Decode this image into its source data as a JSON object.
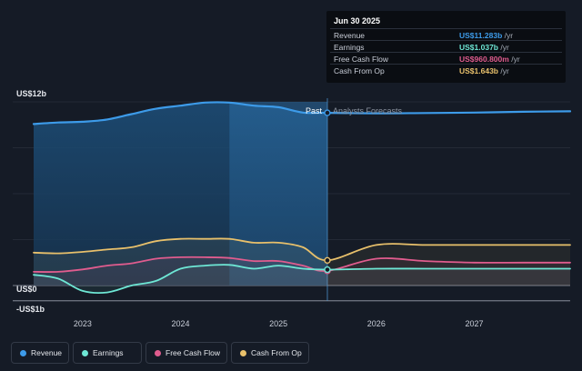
{
  "tooltip": {
    "date": "Jun 30 2025",
    "rows": [
      {
        "label": "Revenue",
        "value": "US$11.283b",
        "unit": "/yr",
        "color": "#3d9be9"
      },
      {
        "label": "Earnings",
        "value": "US$1.037b",
        "unit": "/yr",
        "color": "#6ee7d5"
      },
      {
        "label": "Free Cash Flow",
        "value": "US$960.800m",
        "unit": "/yr",
        "color": "#e05c8e"
      },
      {
        "label": "Cash From Op",
        "value": "US$1.643b",
        "unit": "/yr",
        "color": "#e8c06b"
      }
    ]
  },
  "legend": [
    {
      "label": "Revenue",
      "color": "#3d9be9"
    },
    {
      "label": "Earnings",
      "color": "#6ee7d5"
    },
    {
      "label": "Free Cash Flow",
      "color": "#e05c8e"
    },
    {
      "label": "Cash From Op",
      "color": "#e8c06b"
    }
  ],
  "chart_data": {
    "type": "line",
    "title": "",
    "xlabel": "",
    "ylabel": "",
    "x_range": [
      2022.45,
      2027.98
    ],
    "ylim": [
      -1,
      12
    ],
    "y_tick_labels": [
      {
        "value": 12,
        "label": "US$12b"
      },
      {
        "value": 0,
        "label": "US$0"
      },
      {
        "value": -1,
        "label": "-US$1b"
      }
    ],
    "x_tick_labels": [
      {
        "value": 2023,
        "label": "2023"
      },
      {
        "value": 2024,
        "label": "2024"
      },
      {
        "value": 2025,
        "label": "2025"
      },
      {
        "value": 2026,
        "label": "2026"
      },
      {
        "value": 2027,
        "label": "2027"
      }
    ],
    "past_label": "Past",
    "forecast_label": "Analysts Forecasts",
    "divider_x": 2025.5,
    "highlight_start_x": 2024.5,
    "series": [
      {
        "name": "Revenue",
        "color": "#3d9be9",
        "x": [
          2022.5,
          2022.75,
          2023.0,
          2023.25,
          2023.5,
          2023.75,
          2024.0,
          2024.25,
          2024.5,
          2024.75,
          2025.0,
          2025.25,
          2025.5,
          2026.0,
          2026.5,
          2027.0,
          2027.5,
          2027.98
        ],
        "y": [
          10.55,
          10.65,
          10.7,
          10.85,
          11.2,
          11.55,
          11.75,
          11.95,
          11.95,
          11.75,
          11.65,
          11.3,
          11.283,
          11.25,
          11.27,
          11.3,
          11.35,
          11.38
        ]
      },
      {
        "name": "Earnings",
        "color": "#6ee7d5",
        "x": [
          2022.5,
          2022.75,
          2023.0,
          2023.25,
          2023.5,
          2023.75,
          2024.0,
          2024.25,
          2024.5,
          2024.75,
          2025.0,
          2025.25,
          2025.5,
          2026.0,
          2026.5,
          2027.0,
          2027.5,
          2027.98
        ],
        "y": [
          0.7,
          0.45,
          -0.35,
          -0.45,
          0.0,
          0.3,
          1.1,
          1.3,
          1.35,
          1.1,
          1.3,
          1.1,
          1.037,
          1.1,
          1.1,
          1.1,
          1.1,
          1.1
        ]
      },
      {
        "name": "Free Cash Flow",
        "color": "#e05c8e",
        "x": [
          2022.5,
          2022.75,
          2023.0,
          2023.25,
          2023.5,
          2023.75,
          2024.0,
          2024.25,
          2024.5,
          2024.75,
          2025.0,
          2025.25,
          2025.5,
          2026.0,
          2026.5,
          2027.0,
          2027.5,
          2027.98
        ],
        "y": [
          0.9,
          0.9,
          1.05,
          1.3,
          1.45,
          1.75,
          1.85,
          1.85,
          1.8,
          1.6,
          1.6,
          1.3,
          0.961,
          1.75,
          1.6,
          1.5,
          1.5,
          1.5
        ]
      },
      {
        "name": "Cash From Op",
        "color": "#e8c06b",
        "x": [
          2022.5,
          2022.75,
          2023.0,
          2023.25,
          2023.5,
          2023.75,
          2024.0,
          2024.25,
          2024.5,
          2024.75,
          2025.0,
          2025.25,
          2025.5,
          2026.0,
          2026.5,
          2027.0,
          2027.5,
          2027.98
        ],
        "y": [
          2.15,
          2.1,
          2.2,
          2.35,
          2.5,
          2.9,
          3.05,
          3.05,
          3.05,
          2.8,
          2.8,
          2.5,
          1.643,
          2.65,
          2.65,
          2.65,
          2.65,
          2.65
        ]
      }
    ]
  }
}
